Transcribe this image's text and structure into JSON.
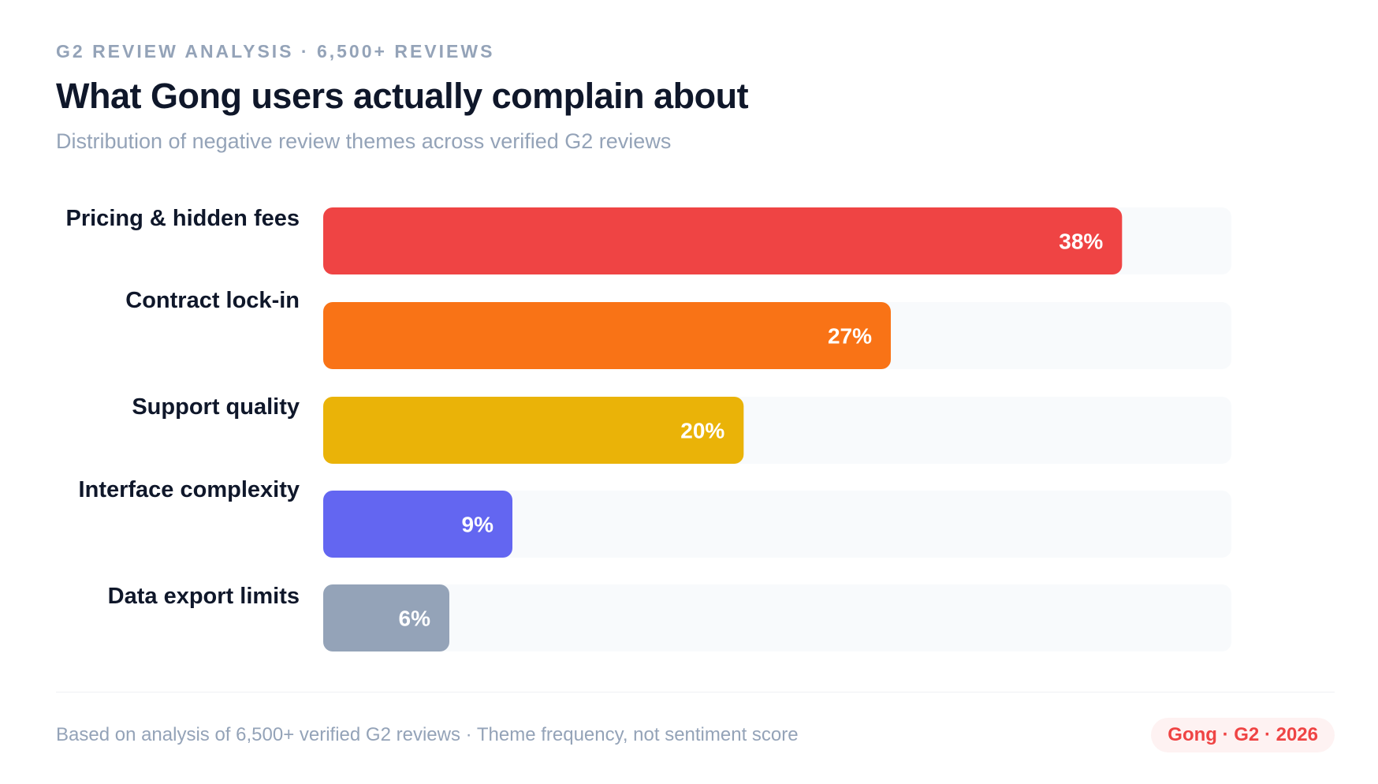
{
  "header": {
    "eyebrow": "G2 REVIEW ANALYSIS · 6,500+ REVIEWS",
    "title": "What Gong users actually complain about",
    "subtitle": "Distribution of negative review themes across verified G2 reviews"
  },
  "chart_data": {
    "type": "bar",
    "orientation": "horizontal",
    "title": "What Gong users actually complain about",
    "subtitle": "Distribution of negative review themes across verified G2 reviews",
    "xlabel": "",
    "ylabel": "",
    "unit": "%",
    "categories": [
      "Pricing & hidden fees",
      "Contract lock-in",
      "Support quality",
      "Interface complexity",
      "Data export limits"
    ],
    "values": [
      38,
      27,
      20,
      9,
      6
    ],
    "labels": [
      "38%",
      "27%",
      "20%",
      "9%",
      "6%"
    ],
    "colors": [
      "#ef4444",
      "#f97316",
      "#eab308",
      "#6366f1",
      "#94a3b8"
    ],
    "xlim": [
      0,
      43.2
    ],
    "track_color": "#f8fafc",
    "grid": false,
    "legend": "none"
  },
  "footer": {
    "note": "Based on analysis of 6,500+ verified G2 reviews · Theme frequency, not sentiment score",
    "badge": "Gong · G2 · 2026"
  }
}
